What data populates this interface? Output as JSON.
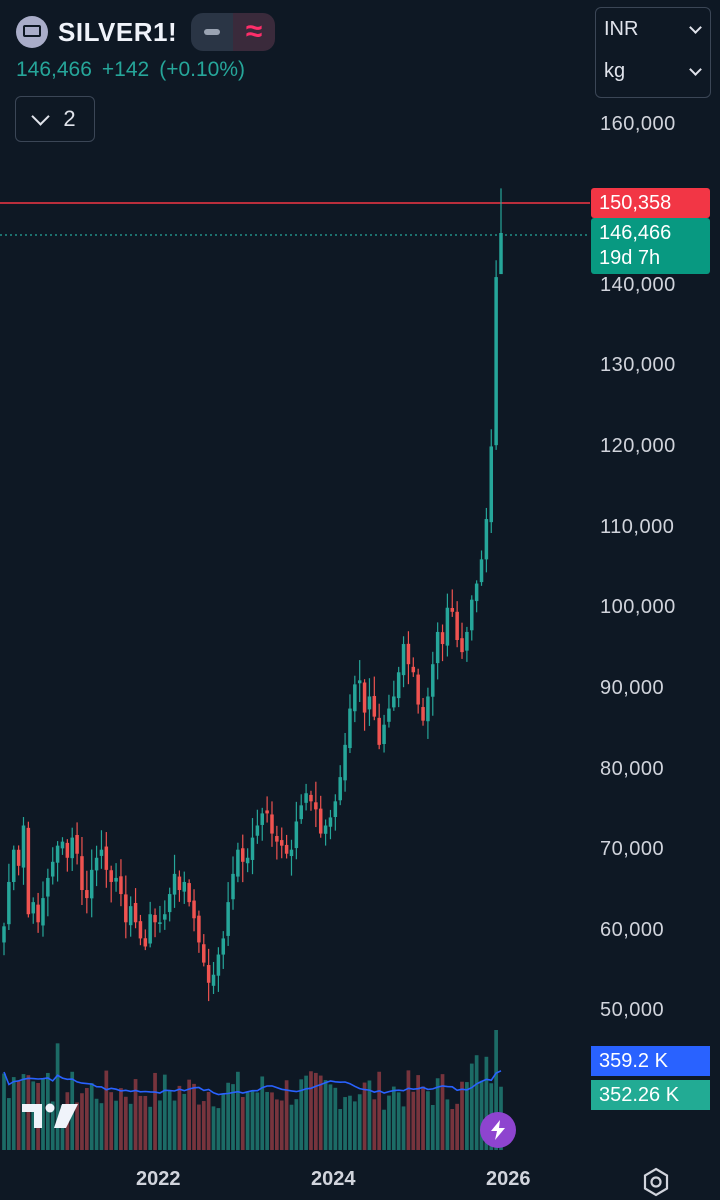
{
  "header": {
    "symbol": "SILVER1!",
    "symbol_icon": "silver-bar-icon",
    "last_price": "146,466",
    "change": "+142",
    "change_pct": "(+0.10%)",
    "wave_icon": "≈",
    "collapse_count": "2"
  },
  "units": {
    "currency": "INR",
    "unit": "kg"
  },
  "price_axis": {
    "labels": [
      "160,000",
      "140,000",
      "130,000",
      "120,000",
      "110,000",
      "100,000",
      "90,000",
      "80,000",
      "70,000",
      "60,000",
      "50,000"
    ]
  },
  "tags": {
    "high_line": "150,358",
    "last_price": "146,466",
    "countdown": "19d 7h",
    "volume_ma": "359.2 K",
    "volume": "352.26 K"
  },
  "time_axis": {
    "labels": [
      "2022",
      "2024",
      "2026"
    ]
  },
  "colors": {
    "up": "#26a69a",
    "down": "#ef5350",
    "ma": "#2962ff",
    "bg": "#0e1824",
    "high_line": "#f23645"
  },
  "chart_data": {
    "type": "candlestick",
    "interval": "weekly (approx.)",
    "y_range": [
      45000,
      165000
    ],
    "x_range": [
      "2020-08",
      "2026-04"
    ],
    "closes": [
      60500,
      66000,
      70000,
      68000,
      73000,
      62000,
      63500,
      61000,
      64000,
      66500,
      68500,
      70500,
      71000,
      69000,
      71500,
      69500,
      65000,
      64000,
      67500,
      69000,
      70000,
      67500,
      66000,
      66500,
      64500,
      61000,
      63000,
      61000,
      59000,
      58000,
      62000,
      61000,
      61000,
      62000,
      64500,
      67000,
      65000,
      66000,
      63500,
      61500,
      58500,
      56000,
      53500,
      54500,
      57000,
      59000,
      63500,
      67000,
      70000,
      68500,
      69000,
      71500,
      73000,
      74500,
      74500,
      72000,
      71000,
      70500,
      69500,
      70000,
      73500,
      75500,
      77000,
      76000,
      75000,
      72000,
      73000,
      74000,
      76000,
      79000,
      83000,
      87500,
      90500,
      91000,
      87000,
      89000,
      86500,
      83000,
      85500,
      87500,
      89000,
      92000,
      95500,
      93000,
      92000,
      88000,
      86000,
      89000,
      93000,
      97000,
      95500,
      100000,
      99500,
      96000,
      94500,
      97000,
      101000,
      103000,
      106000,
      111000,
      120000,
      141000,
      146466
    ]
  }
}
